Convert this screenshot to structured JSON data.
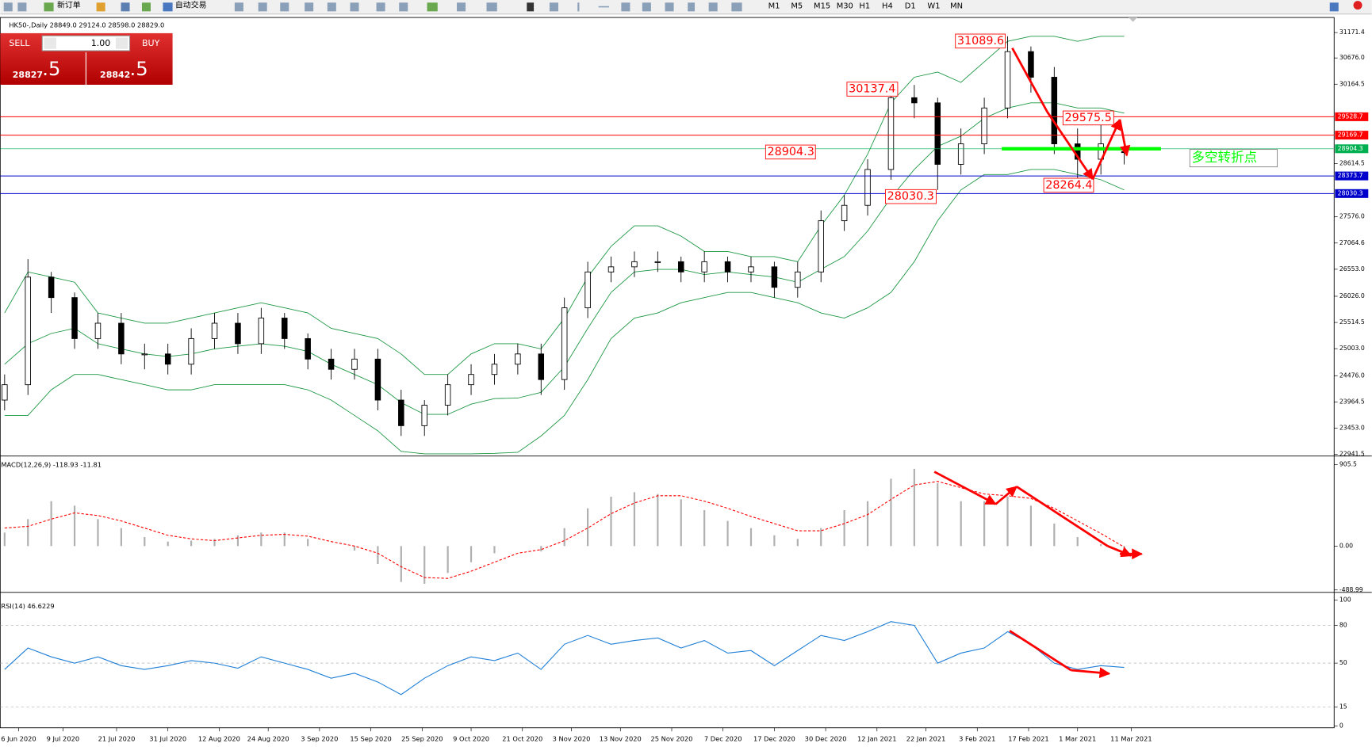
{
  "toolbar": {
    "new_order": "新订单",
    "auto_trading": "自动交易",
    "timeframes": [
      "M1",
      "M5",
      "M15",
      "M30",
      "H1",
      "H4",
      "D1",
      "W1",
      "MN"
    ]
  },
  "trade_panel": {
    "sell": "SELL",
    "buy": "BUY",
    "lots": "1.00",
    "sell_price": "28827",
    "sell_pips": ".5",
    "buy_price": "28842",
    "buy_pips": ".5"
  },
  "chart_data": [
    {
      "type": "candlestick",
      "title": "HK50-,Daily 28849.0 29124.0 28598.0 28829.0",
      "xlim": [
        0,
        57
      ],
      "xticks": [
        {
          "value": 0.6,
          "label": "6 Jun 2020"
        },
        {
          "value": 2.5,
          "label": "9 Jul 2020"
        },
        {
          "value": 4.8,
          "label": "21 Jul 2020"
        },
        {
          "value": 7,
          "label": "31 Jul 2020"
        },
        {
          "value": 9.2,
          "label": "12 Aug 2020"
        },
        {
          "value": 11.3,
          "label": "24 Aug 2020"
        },
        {
          "value": 13.5,
          "label": "3 Sep 2020"
        },
        {
          "value": 15.7,
          "label": "15 Sep 2020"
        },
        {
          "value": 17.9,
          "label": "25 Sep 2020"
        },
        {
          "value": 20,
          "label": "9 Oct 2020"
        },
        {
          "value": 22.2,
          "label": "21 Oct 2020"
        },
        {
          "value": 24.3,
          "label": "3 Nov 2020"
        },
        {
          "value": 26.4,
          "label": "13 Nov 2020"
        },
        {
          "value": 28.6,
          "label": "25 Nov 2020"
        },
        {
          "value": 30.8,
          "label": "7 Dec 2020"
        },
        {
          "value": 33,
          "label": "17 Dec 2020"
        },
        {
          "value": 35.2,
          "label": "30 Dec 2020"
        },
        {
          "value": 37.4,
          "label": "12 Jan 2021"
        },
        {
          "value": 39.5,
          "label": "22 Jan 2021"
        },
        {
          "value": 41.7,
          "label": "3 Feb 2021"
        },
        {
          "value": 43.9,
          "label": "17 Feb 2021"
        },
        {
          "value": 46,
          "label": "1 Mar 2021"
        },
        {
          "value": 48.3,
          "label": "11 Mar 2021"
        }
      ],
      "ylim": [
        22941.5,
        31432
      ],
      "yticks": [
        31171.4,
        {
          "value": 30676,
          "label": "30676.0"
        },
        30164.5,
        28614.5,
        {
          "value": 27576,
          "label": "27576.0"
        },
        27064.6,
        {
          "value": 26553,
          "label": "26553.0"
        },
        {
          "value": 26026,
          "label": "26026.0"
        },
        25514.5,
        {
          "value": 25003,
          "label": "25003.0"
        },
        {
          "value": 24476,
          "label": "24476.0"
        },
        23964.5,
        {
          "value": 23453,
          "label": "23453.0"
        },
        22941.5
      ],
      "open": [
        24000,
        24300,
        26400,
        26000,
        25200,
        25500,
        24900,
        24900,
        24700,
        25200,
        25500,
        25100,
        25600,
        25200,
        24800,
        24600,
        24800,
        24000,
        23500,
        23900,
        24300,
        24500,
        24700,
        24900,
        24400,
        25800,
        26500,
        26600,
        26700,
        26700,
        26500,
        26700,
        26500,
        26600,
        26200,
        26500,
        27500,
        27800,
        28500,
        29900,
        29800,
        28600,
        29000,
        29700,
        30800,
        30300,
        29000,
        28700,
        28849
      ],
      "high": [
        24500,
        26750,
        26500,
        26100,
        25700,
        25700,
        25100,
        25100,
        25400,
        25700,
        25700,
        25800,
        25700,
        25300,
        25000,
        25000,
        25000,
        24200,
        24000,
        24500,
        24700,
        24900,
        25100,
        25100,
        26000,
        26700,
        26800,
        26900,
        26900,
        26800,
        26900,
        26800,
        26800,
        26700,
        26700,
        27700,
        28000,
        28700,
        30100,
        30150,
        29900,
        29300,
        29900,
        31100,
        30900,
        30500,
        29300,
        29500,
        29124
      ],
      "low": [
        23800,
        24100,
        25700,
        25000,
        25000,
        24700,
        24600,
        24500,
        24500,
        25000,
        24900,
        24900,
        25000,
        24600,
        24400,
        24400,
        23800,
        23300,
        23300,
        23700,
        24100,
        24300,
        24500,
        24100,
        24200,
        25600,
        26300,
        26400,
        26500,
        26300,
        26300,
        26300,
        26300,
        26000,
        26000,
        26300,
        27300,
        27600,
        28300,
        29500,
        28100,
        28400,
        28800,
        29500,
        30000,
        28800,
        28300,
        28400,
        28598
      ],
      "close": [
        24300,
        26400,
        26000,
        25200,
        25500,
        24900,
        24900,
        24700,
        25200,
        25500,
        25100,
        25600,
        25200,
        24800,
        24600,
        24800,
        24000,
        23500,
        23900,
        24300,
        24500,
        24700,
        24900,
        24400,
        25800,
        26500,
        26600,
        26700,
        26700,
        26500,
        26700,
        26500,
        26600,
        26200,
        26500,
        27500,
        27800,
        28500,
        29900,
        29800,
        28600,
        29000,
        29700,
        30800,
        30300,
        29000,
        28700,
        29000,
        28829
      ],
      "overlays": [
        {
          "color": "#1a9641",
          "values": [
            25700,
            26500,
            26400,
            26300,
            25700,
            25600,
            25500,
            25500,
            25600,
            25700,
            25800,
            25900,
            25800,
            25700,
            25400,
            25300,
            25200,
            24900,
            24500,
            24500,
            24900,
            25100,
            25100,
            25000,
            25600,
            26400,
            27000,
            27400,
            27400,
            27200,
            26900,
            26900,
            26800,
            26800,
            26700,
            27400,
            28000,
            28800,
            29800,
            30300,
            30400,
            30200,
            30600,
            31000,
            31100,
            31100,
            31000,
            31100,
            31100
          ]
        },
        {
          "color": "#1a9641",
          "values": [
            24700,
            25100,
            25300,
            25400,
            25100,
            25000,
            24900,
            24850,
            24900,
            25000,
            25050,
            25100,
            25050,
            24950,
            24700,
            24500,
            24300,
            23950,
            23720,
            23720,
            23920,
            24030,
            24040,
            24150,
            24650,
            25400,
            26100,
            26500,
            26550,
            26550,
            26450,
            26500,
            26450,
            26400,
            26300,
            26550,
            26800,
            27300,
            27950,
            28500,
            28950,
            29150,
            29500,
            29700,
            29800,
            29800,
            29700,
            29700,
            29600
          ]
        },
        {
          "color": "#1a9641",
          "values": [
            23700,
            23700,
            24200,
            24500,
            24500,
            24400,
            24300,
            24200,
            24200,
            24300,
            24300,
            24300,
            24300,
            24200,
            24000,
            23700,
            23400,
            23000,
            22950,
            22950,
            22950,
            22960,
            22980,
            23300,
            23700,
            24400,
            25200,
            25600,
            25700,
            25900,
            26000,
            26100,
            26100,
            26000,
            25900,
            25700,
            25600,
            25800,
            26100,
            26700,
            27500,
            28100,
            28400,
            28400,
            28500,
            28500,
            28400,
            28300,
            28100
          ]
        }
      ],
      "levels": [
        {
          "value": 29528.7,
          "color": "#ff0000"
        },
        {
          "value": 29169.7,
          "color": "#ff0000"
        },
        {
          "value": 28904.3,
          "color": "#00b050"
        },
        {
          "value": 28373.7,
          "color": "#0000cc"
        },
        {
          "value": 28030.3,
          "color": "#0000cc"
        }
      ],
      "annotations": [
        31089.6,
        30137.4,
        28904.3,
        28030.3,
        29575.5,
        28264.4
      ],
      "note": "多空转折点"
    },
    {
      "type": "macd",
      "title": "MACD(12,26,9) -118.93 -11.81",
      "ylim": [
        -506,
        973
      ],
      "yticks": [
        905.5,
        {
          "value": 0,
          "label": "0.00"
        },
        -488.99
      ],
      "series": [
        {
          "color": "#b0b0b0",
          "values": [
            150,
            300,
            500,
            450,
            300,
            200,
            100,
            50,
            60,
            80,
            120,
            150,
            150,
            80,
            0,
            -50,
            -200,
            -400,
            -420,
            -300,
            -180,
            -80,
            0,
            -60,
            200,
            420,
            550,
            600,
            580,
            520,
            400,
            280,
            200,
            120,
            80,
            200,
            400,
            500,
            750,
            860,
            700,
            500,
            500,
            550,
            450,
            250,
            100,
            20,
            -119
          ]
        },
        {
          "color": "#ff0000",
          "values": [
            200,
            220,
            300,
            370,
            340,
            280,
            200,
            120,
            80,
            60,
            90,
            120,
            130,
            110,
            50,
            0,
            -80,
            -230,
            -350,
            -360,
            -280,
            -180,
            -80,
            -40,
            60,
            200,
            360,
            480,
            560,
            560,
            500,
            420,
            330,
            250,
            170,
            170,
            250,
            350,
            520,
            680,
            720,
            650,
            580,
            560,
            530,
            420,
            280,
            140,
            -12
          ]
        }
      ]
    },
    {
      "type": "line",
      "title": "RSI(14) 46.6229",
      "ylim": [
        0,
        100
      ],
      "yticks": [
        100,
        80,
        50,
        15,
        0
      ],
      "series": [
        {
          "color": "#1e7fd6",
          "values": [
            45,
            62,
            55,
            50,
            55,
            48,
            45,
            48,
            52,
            50,
            46,
            55,
            50,
            45,
            38,
            42,
            35,
            25,
            38,
            48,
            55,
            52,
            58,
            45,
            65,
            72,
            65,
            68,
            70,
            62,
            68,
            58,
            60,
            48,
            60,
            72,
            68,
            75,
            83,
            80,
            50,
            58,
            62,
            75,
            65,
            50,
            45,
            48,
            46.6229
          ]
        }
      ]
    }
  ]
}
